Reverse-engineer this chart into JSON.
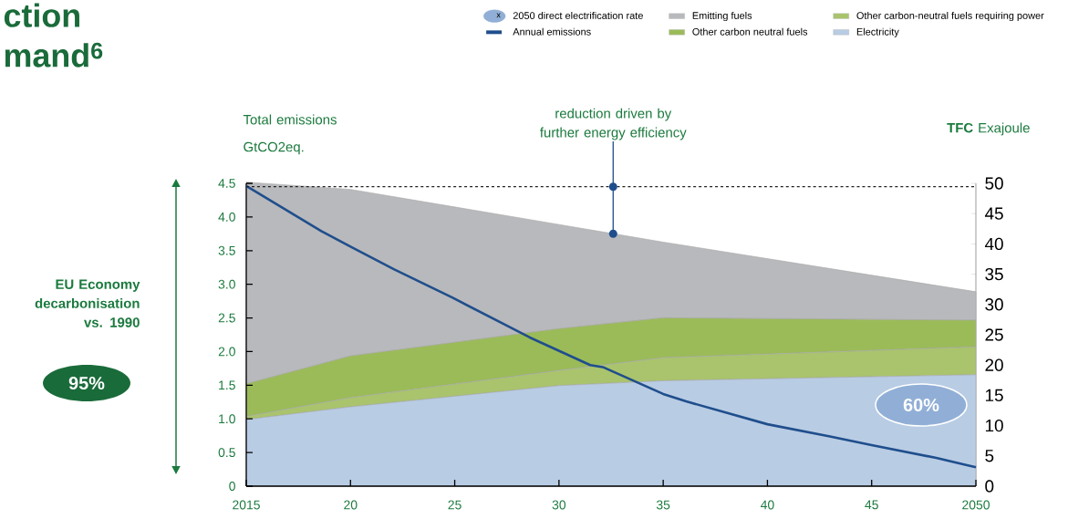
{
  "chart_data": {
    "type": "area",
    "title": "ction mand$^{6}$",
    "ylabel": "Total emissions GtCO2eq.",
    "y2label": "**TFC** Exajoule",
    "x": [
      2015,
      2020,
      2030,
      2035,
      2050
    ],
    "stacked": true,
    "series": [
      {
        "name": "Electricity",
        "color": "#b8cce4",
        "axis": "y2",
        "values": [
          11.0,
          13.1,
          16.6,
          17.4,
          18.4
        ]
      },
      {
        "name": "Other carbon-neutral fuels requiring power",
        "color": "#a9c46c",
        "axis": "y2",
        "values": [
          0.5,
          1.5,
          2.5,
          3.8,
          4.6
        ]
      },
      {
        "name": "Other carbon neutral fuels",
        "color": "#9bbb59",
        "axis": "y2",
        "values": [
          5.4,
          6.9,
          6.9,
          6.6,
          4.4
        ]
      },
      {
        "name": "Emitting fuels",
        "color": "#b8b9bc",
        "axis": "y2",
        "values": [
          33.3,
          27.5,
          17.2,
          12.5,
          4.7
        ]
      },
      {
        "name": "Annual emissions",
        "type": "line",
        "color": "#1f4e8c",
        "axis": "y",
        "x": [
          2015,
          2018.6,
          2020,
          2022.1,
          2024.9,
          2028.6,
          2031.5,
          2032.1,
          2035,
          2036.1,
          2040,
          2043,
          2045,
          2048.1,
          2050
        ],
        "values": [
          4.46,
          3.79,
          3.56,
          3.22,
          2.8,
          2.21,
          1.8,
          1.77,
          1.37,
          1.26,
          0.92,
          0.74,
          0.61,
          0.42,
          0.28
        ]
      }
    ],
    "xlim": [
      2015,
      2050
    ],
    "xticks": [
      2015,
      {
        "value": 2020,
        "label": "20"
      },
      {
        "value": 2025,
        "label": "25"
      },
      {
        "value": 2030,
        "label": "30"
      },
      {
        "value": 2035,
        "label": "35"
      },
      {
        "value": 2040,
        "label": "40"
      },
      {
        "value": 2045,
        "label": "45"
      },
      2050
    ],
    "ylim": [
      0,
      4.5
    ],
    "yticks": [
      0,
      0.5,
      {
        "value": 1,
        "label": "1.0"
      },
      1.5,
      {
        "value": 2,
        "label": "2.0"
      },
      2.5,
      {
        "value": 3,
        "label": "3.0"
      },
      3.5,
      {
        "value": 4,
        "label": "4.0"
      },
      4.5
    ],
    "y2lim": [
      0,
      50
    ],
    "y2ticks": [
      0,
      5,
      10,
      15,
      20,
      25,
      30,
      35,
      40,
      45,
      50
    ],
    "ref_lines": [
      {
        "axis": "y",
        "value": 4.45,
        "line_style": "dashed",
        "color": "#222222"
      }
    ],
    "annotations": [
      {
        "text": "reduction driven by further energy efficiency",
        "x": 2032.6,
        "y": 4.45
      },
      "EU Economy decarbonisation vs. 1990",
      "95%",
      "60%",
      "2050 direct electrification rate",
      "x"
    ],
    "legend": "top"
  }
}
